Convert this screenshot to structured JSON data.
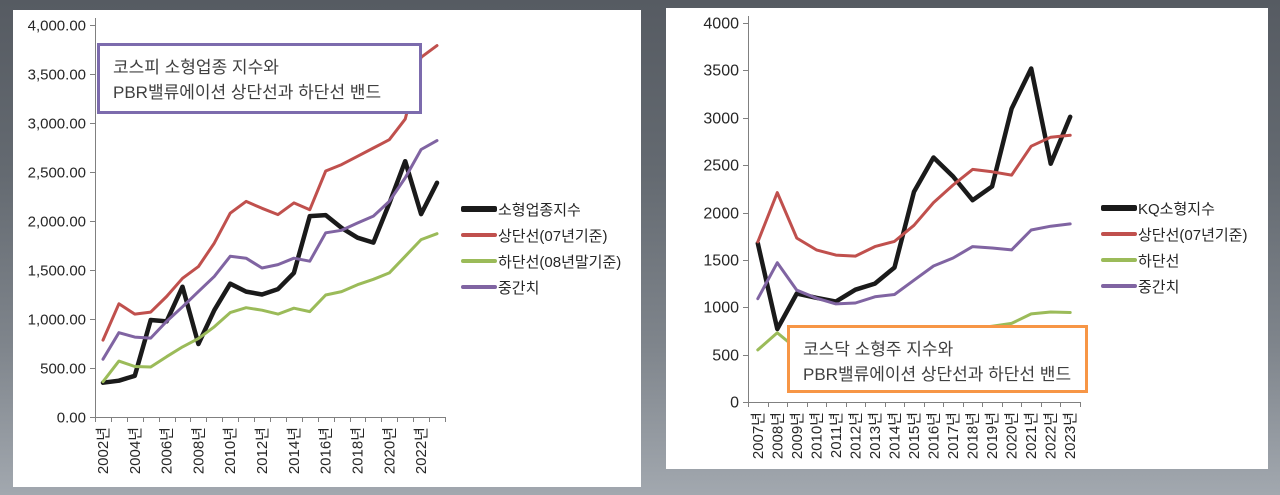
{
  "charts": [
    {
      "annotation": {
        "line1": "코스피 소형업종 지수와",
        "line2": "PBR밸류에이션 상단선과 하단선 밴드",
        "border_color": "#7C6BAD"
      },
      "chart_data": {
        "type": "line",
        "categories": [
          "2002년",
          "2003년",
          "2004년",
          "2005년",
          "2006년",
          "2007년",
          "2008년",
          "2009년",
          "2010년",
          "2011년",
          "2012년",
          "2013년",
          "2014년",
          "2015년",
          "2016년",
          "2017년",
          "2018년",
          "2019년",
          "2020년",
          "2021년",
          "2022년",
          "2023년"
        ],
        "x_label_step": 2,
        "ylim": [
          0,
          4000
        ],
        "y_tick_step": 500,
        "y_tick_labels": [
          "0.00",
          "500.00",
          "1,000.00",
          "1,500.00",
          "2,000.00",
          "2,500.00",
          "3,000.00",
          "3,500.00",
          "4,000.00"
        ],
        "grid": false,
        "legend_position": "right",
        "series": [
          {
            "name": "소형업종지수",
            "color": "#1A1A1A",
            "width": 4.5,
            "values": [
              350,
              370,
              420,
              990,
              975,
              1330,
              745,
              1090,
              1360,
              1280,
              1250,
              1305,
              1470,
              2050,
              2060,
              1930,
              1830,
              1780,
              2180,
              2610,
              2070,
              2390
            ]
          },
          {
            "name": "상단선(07년기준)",
            "color": "#C0504D",
            "width": 3,
            "values": [
              785,
              1155,
              1050,
              1070,
              1230,
              1415,
              1535,
              1775,
              2080,
              2200,
              2130,
              2065,
              2185,
              2115,
              2510,
              2575,
              2660,
              2745,
              2830,
              3040,
              3670,
              3790
            ]
          },
          {
            "name": "하단선(08년말기준)",
            "color": "#9BBB59",
            "width": 3,
            "values": [
              360,
              570,
              515,
              510,
              615,
              715,
              800,
              920,
              1065,
              1115,
              1090,
              1050,
              1110,
              1075,
              1245,
              1280,
              1350,
              1405,
              1470,
              1640,
              1810,
              1870
            ]
          },
          {
            "name": "중간치",
            "color": "#8064A2",
            "width": 3,
            "values": [
              590,
              860,
              815,
              805,
              975,
              1125,
              1280,
              1435,
              1640,
              1620,
              1520,
              1555,
              1620,
              1590,
              1880,
              1905,
              1980,
              2050,
              2200,
              2440,
              2730,
              2820
            ]
          }
        ]
      }
    },
    {
      "annotation": {
        "line1": "코스닥 소형주 지수와",
        "line2": "PBR밸류에이션 상단선과 하단선 밴드",
        "border_color": "#F79646"
      },
      "chart_data": {
        "type": "line",
        "categories": [
          "2007년",
          "2008년",
          "2009년",
          "2010년",
          "2011년",
          "2012년",
          "2013년",
          "2014년",
          "2015년",
          "2016년",
          "2017년",
          "2018년",
          "2019년",
          "2020년",
          "2021년",
          "2022년",
          "2023년"
        ],
        "x_label_step": 1,
        "ylim": [
          0,
          4000
        ],
        "y_tick_step": 500,
        "y_tick_labels": [
          "0",
          "500",
          "1000",
          "1500",
          "2000",
          "2500",
          "3000",
          "3500",
          "4000"
        ],
        "grid": false,
        "legend_position": "right",
        "series": [
          {
            "name": "KQ소형지수",
            "color": "#1A1A1A",
            "width": 4.5,
            "values": [
              1675,
              770,
              1145,
              1100,
              1060,
              1185,
              1250,
              1420,
              2220,
              2580,
              2380,
              2130,
              2275,
              3095,
              3520,
              2515,
              3010
            ]
          },
          {
            "name": "상단선(07년기준)",
            "color": "#C0504D",
            "width": 3,
            "values": [
              1690,
              2210,
              1730,
              1605,
              1550,
              1540,
              1640,
              1695,
              1865,
              2105,
              2290,
              2455,
              2430,
              2395,
              2700,
              2795,
              2815
            ]
          },
          {
            "name": "하단선",
            "color": "#9BBB59",
            "width": 3,
            "values": [
              550,
              730,
              560,
              520,
              505,
              515,
              540,
              565,
              625,
              680,
              725,
              775,
              800,
              830,
              930,
              950,
              945
            ]
          },
          {
            "name": "중간치",
            "color": "#8064A2",
            "width": 3,
            "values": [
              1090,
              1470,
              1180,
              1095,
              1035,
              1045,
              1110,
              1135,
              1285,
              1435,
              1520,
              1640,
              1625,
              1605,
              1815,
              1855,
              1880
            ]
          }
        ]
      }
    }
  ]
}
